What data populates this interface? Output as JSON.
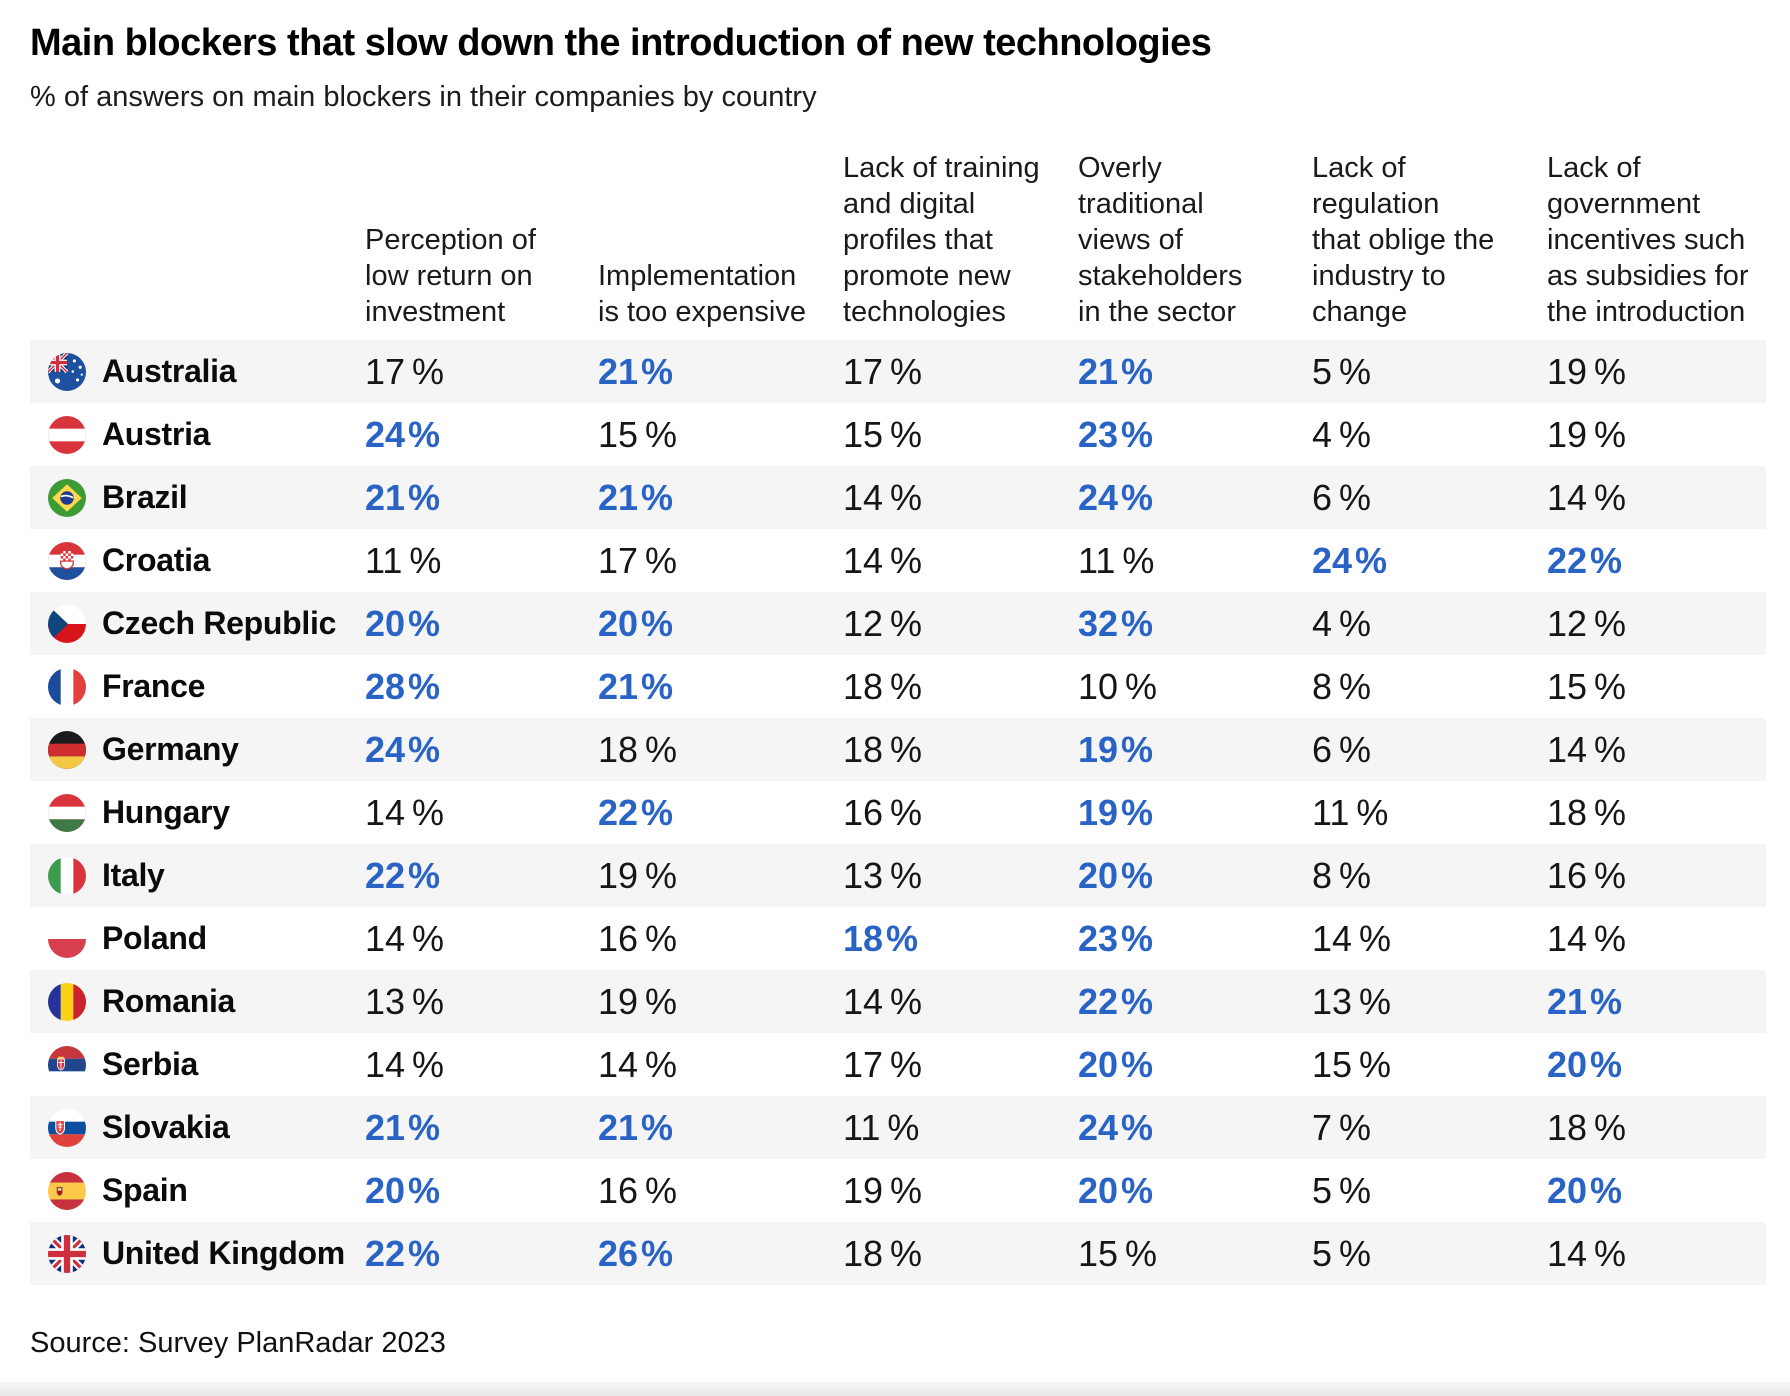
{
  "title": "Main blockers that slow down the introduction of new technologies",
  "subtitle": "% of answers on main blockers in their companies by country",
  "source": "Source: Survey PlanRadar 2023",
  "colors": {
    "highlight_blue": "#2a63c6",
    "row_stripe": "#f5f5f5",
    "value_text": "#161616"
  },
  "chart_data": {
    "type": "table",
    "title": "Main blockers that slow down the introduction of new technologies",
    "subtitle": "% of answers on main blockers in their companies by country",
    "value_suffix": "%",
    "highlight_style": "bold blue values mark the leading blockers per country",
    "columns": [
      "Perception of\nlow return on\ninvestment",
      "Implementation\nis too expensive",
      "Lack of training\nand digital\nprofiles that\npromote new\ntechnologies",
      "Overly\ntraditional\nviews of\nstakeholders\nin the sector",
      "Lack of\nregulation\nthat oblige the\nindustry to\nchange",
      "Lack of\ngovernment\nincentives such\nas subsidies for\nthe introduction"
    ],
    "rows": [
      {
        "country": "Australia",
        "flag": "au",
        "values": [
          17,
          21,
          17,
          21,
          5,
          19
        ],
        "highlighted": [
          false,
          true,
          false,
          true,
          false,
          false
        ]
      },
      {
        "country": "Austria",
        "flag": "at",
        "values": [
          24,
          15,
          15,
          23,
          4,
          19
        ],
        "highlighted": [
          true,
          false,
          false,
          true,
          false,
          false
        ]
      },
      {
        "country": "Brazil",
        "flag": "br",
        "values": [
          21,
          21,
          14,
          24,
          6,
          14
        ],
        "highlighted": [
          true,
          true,
          false,
          true,
          false,
          false
        ]
      },
      {
        "country": "Croatia",
        "flag": "hr",
        "values": [
          11,
          17,
          14,
          11,
          24,
          22
        ],
        "highlighted": [
          false,
          false,
          false,
          false,
          true,
          true
        ]
      },
      {
        "country": "Czech Republic",
        "flag": "cz",
        "values": [
          20,
          20,
          12,
          32,
          4,
          12
        ],
        "highlighted": [
          true,
          true,
          false,
          true,
          false,
          false
        ]
      },
      {
        "country": "France",
        "flag": "fr",
        "values": [
          28,
          21,
          18,
          10,
          8,
          15
        ],
        "highlighted": [
          true,
          true,
          false,
          false,
          false,
          false
        ]
      },
      {
        "country": "Germany",
        "flag": "de",
        "values": [
          24,
          18,
          18,
          19,
          6,
          14
        ],
        "highlighted": [
          true,
          false,
          false,
          true,
          false,
          false
        ]
      },
      {
        "country": "Hungary",
        "flag": "hu",
        "values": [
          14,
          22,
          16,
          19,
          11,
          18
        ],
        "highlighted": [
          false,
          true,
          false,
          true,
          false,
          false
        ]
      },
      {
        "country": "Italy",
        "flag": "it",
        "values": [
          22,
          19,
          13,
          20,
          8,
          16
        ],
        "highlighted": [
          true,
          false,
          false,
          true,
          false,
          false
        ]
      },
      {
        "country": "Poland",
        "flag": "pl",
        "values": [
          14,
          16,
          18,
          23,
          14,
          14
        ],
        "highlighted": [
          false,
          false,
          true,
          true,
          false,
          false
        ]
      },
      {
        "country": "Romania",
        "flag": "ro",
        "values": [
          13,
          19,
          14,
          22,
          13,
          21
        ],
        "highlighted": [
          false,
          false,
          false,
          true,
          false,
          true
        ]
      },
      {
        "country": "Serbia",
        "flag": "rs",
        "values": [
          14,
          14,
          17,
          20,
          15,
          20
        ],
        "highlighted": [
          false,
          false,
          false,
          true,
          false,
          true
        ]
      },
      {
        "country": "Slovakia",
        "flag": "sk",
        "values": [
          21,
          21,
          11,
          24,
          7,
          18
        ],
        "highlighted": [
          true,
          true,
          false,
          true,
          false,
          false
        ]
      },
      {
        "country": "Spain",
        "flag": "es",
        "values": [
          20,
          16,
          19,
          20,
          5,
          20
        ],
        "highlighted": [
          true,
          false,
          false,
          true,
          false,
          true
        ]
      },
      {
        "country": "United Kingdom",
        "flag": "gb",
        "values": [
          22,
          26,
          18,
          15,
          5,
          14
        ],
        "highlighted": [
          true,
          true,
          false,
          false,
          false,
          false
        ]
      }
    ]
  }
}
